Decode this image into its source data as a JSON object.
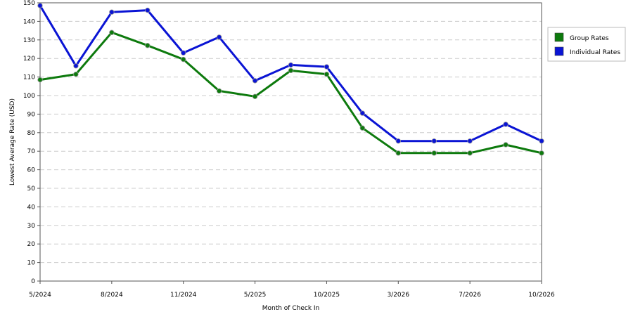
{
  "chart_data": {
    "type": "line",
    "title": "",
    "xlabel": "Month of Check In",
    "ylabel": "Lowest Average Rate (USD)",
    "ylim": [
      0,
      150
    ],
    "yticks": [
      0,
      10,
      20,
      30,
      40,
      50,
      60,
      70,
      80,
      90,
      100,
      110,
      120,
      130,
      140,
      150
    ],
    "grid": true,
    "legend_position": "right",
    "x_tick_labels": [
      {
        "index": 0,
        "label": "5/2024"
      },
      {
        "index": 2,
        "label": "8/2024"
      },
      {
        "index": 4,
        "label": "11/2024"
      },
      {
        "index": 6,
        "label": "5/2025"
      },
      {
        "index": 8,
        "label": "10/2025"
      },
      {
        "index": 10,
        "label": "3/2026"
      },
      {
        "index": 12,
        "label": "7/2026"
      },
      {
        "index": 14,
        "label": "10/2026"
      }
    ],
    "point_count": 15,
    "series": [
      {
        "name": "Group Rates",
        "color": "#0d7a0d",
        "values": [
          108.5,
          111.5,
          134,
          127,
          119.5,
          102.5,
          99.5,
          113.5,
          111.5,
          82.5,
          69,
          69,
          69,
          73.5,
          69
        ]
      },
      {
        "name": "Individual Rates",
        "color": "#0a14d4",
        "values": [
          148.5,
          116,
          145,
          146,
          123,
          131.5,
          108,
          116.5,
          115.5,
          90.5,
          75.5,
          75.5,
          75.5,
          84.5,
          75.5
        ]
      }
    ]
  }
}
